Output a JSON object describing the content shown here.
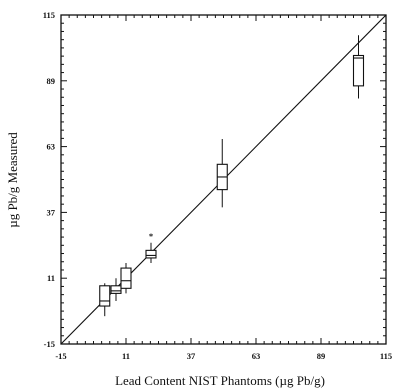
{
  "chart_data": {
    "type": "box",
    "xlabel": "Lead Content NIST Phantoms (µg Pb/g)",
    "ylabel": "µg Pb/g Measured",
    "xlim": [
      -15,
      115
    ],
    "ylim": [
      -15,
      115
    ],
    "x_ticks": [
      "-15",
      "11",
      "37",
      "63",
      "89",
      "115"
    ],
    "y_ticks": [
      "-15",
      "11",
      "37",
      "63",
      "89",
      "115"
    ],
    "reference_line": {
      "label": "",
      "from": [
        -15,
        -15
      ],
      "to": [
        115,
        115
      ]
    },
    "minor_ticks": true,
    "boxes": [
      {
        "x": 2.5,
        "whisker_low": -4,
        "q1": 0,
        "median": 2,
        "q3": 8,
        "whisker_high": 9
      },
      {
        "x": 7,
        "whisker_low": 2,
        "q1": 5,
        "median": 6,
        "q3": 8,
        "whisker_high": 11
      },
      {
        "x": 11,
        "whisker_low": 5,
        "q1": 7,
        "median": 10,
        "q3": 15,
        "whisker_high": 17
      },
      {
        "x": 21,
        "whisker_low": 17,
        "q1": 19,
        "median": 20,
        "q3": 22,
        "whisker_high": 25,
        "outlier_high": 28
      },
      {
        "x": 49.5,
        "whisker_low": 39,
        "q1": 46,
        "median": 51,
        "q3": 56,
        "whisker_high": 66
      },
      {
        "x": 104,
        "whisker_low": 82,
        "q1": 87,
        "median": 98,
        "q3": 99,
        "whisker_high": 107
      }
    ]
  }
}
